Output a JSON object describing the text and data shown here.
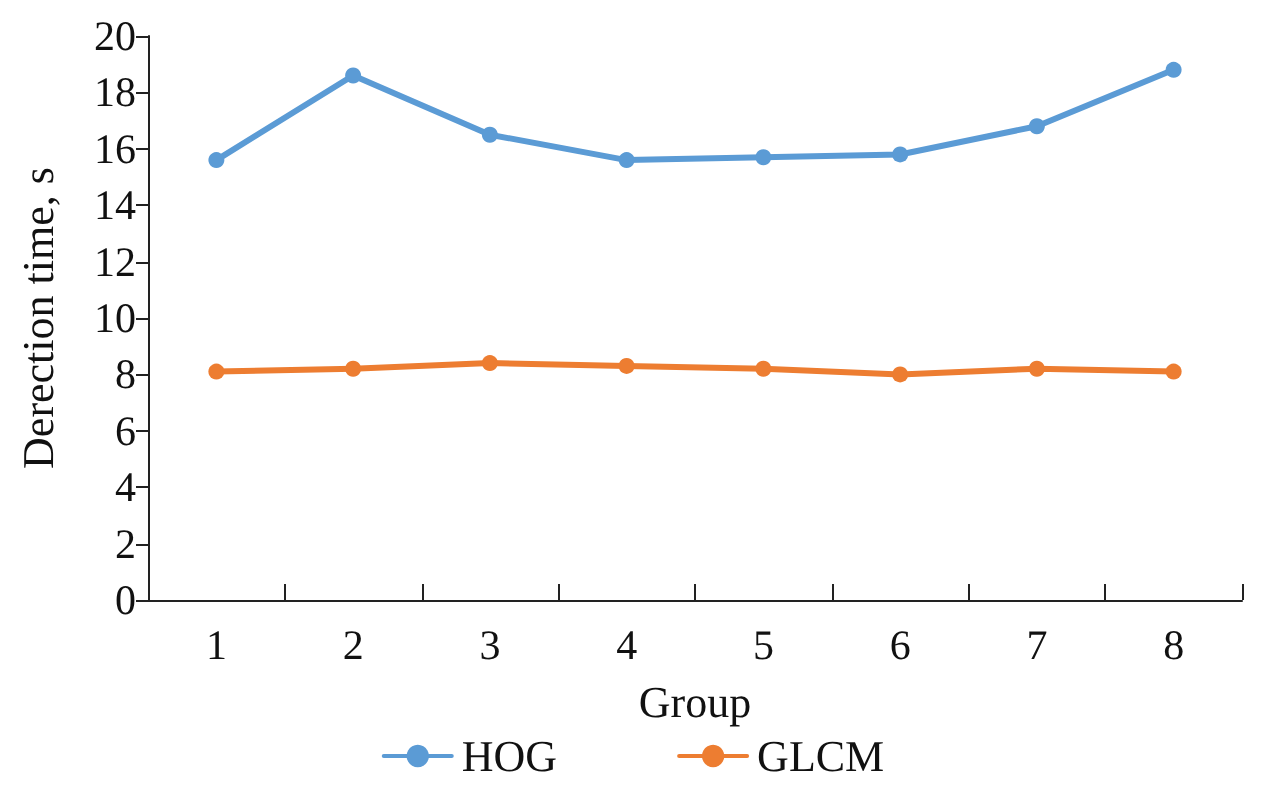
{
  "chart_data": {
    "type": "line",
    "xlabel": "Group",
    "ylabel": "Derection time, s",
    "categories": [
      "1",
      "2",
      "3",
      "4",
      "5",
      "6",
      "7",
      "8"
    ],
    "series": [
      {
        "name": "HOG",
        "color": "#5b9bd5",
        "values": [
          15.6,
          18.6,
          16.5,
          15.6,
          15.7,
          15.8,
          16.8,
          18.8
        ]
      },
      {
        "name": "GLCM",
        "color": "#ed7d31",
        "values": [
          8.1,
          8.2,
          8.4,
          8.3,
          8.2,
          8.0,
          8.2,
          8.1
        ]
      }
    ],
    "ylim": [
      0,
      20
    ],
    "yticks": [
      0,
      2,
      4,
      6,
      8,
      10,
      12,
      14,
      16,
      18,
      20
    ],
    "grid": false,
    "legend": "bottom",
    "marker": "circle",
    "line_style": "solid"
  }
}
